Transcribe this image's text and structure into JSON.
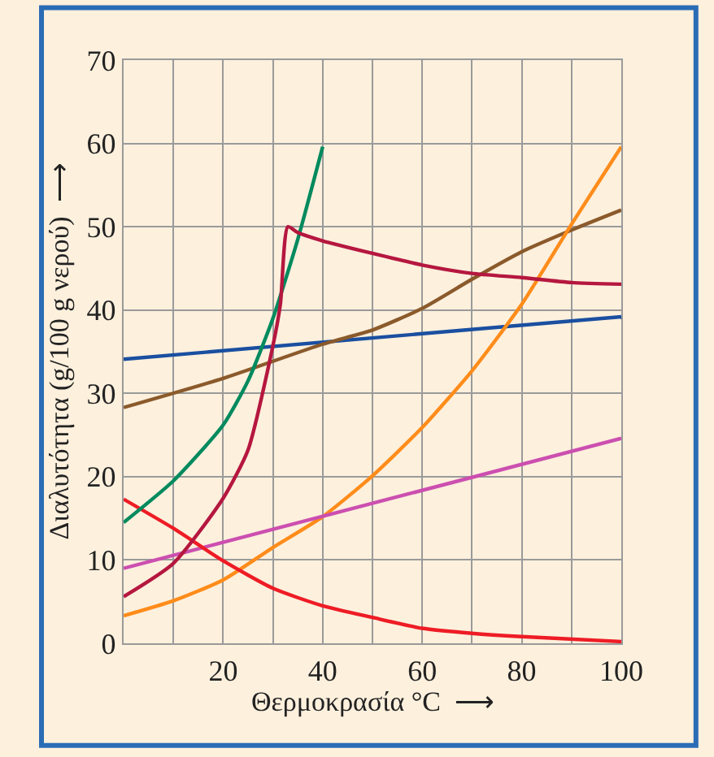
{
  "chart_data": {
    "type": "line",
    "xlabel": "Θερμοκρασία °C  ⟶",
    "ylabel": "Διαλυτότητα (g/100 g νερού)  ⟶",
    "xlim": [
      0,
      100
    ],
    "ylim": [
      0,
      70
    ],
    "xticks": [
      {
        "value": 0,
        "label": null
      },
      {
        "value": 10,
        "label": null
      },
      20,
      {
        "value": 30,
        "label": null
      },
      40,
      {
        "value": 50,
        "label": null
      },
      60,
      {
        "value": 70,
        "label": null
      },
      80,
      {
        "value": 90,
        "label": null
      },
      100
    ],
    "yticks": [
      0,
      10,
      20,
      30,
      40,
      50,
      60,
      70
    ],
    "grid": true,
    "marker": "none",
    "line_style": "solid",
    "series": [
      {
        "color": "#1a4fa0",
        "x": [
          0,
          100
        ],
        "values": [
          34.1,
          39.2
        ]
      },
      {
        "color": "#8b5a2b",
        "x": [
          0,
          20,
          40,
          50,
          60,
          70,
          80,
          90,
          100
        ],
        "values": [
          28.3,
          31.8,
          35.9,
          37.6,
          40.2,
          43.7,
          47,
          49.6,
          52
        ]
      },
      {
        "color": "#ff8c1a",
        "x": [
          0,
          10,
          20,
          30,
          40,
          50,
          60,
          70,
          80,
          90,
          100
        ],
        "values": [
          3.3,
          5.1,
          7.6,
          11.5,
          15.2,
          20.1,
          25.9,
          32.7,
          40.7,
          50.3,
          59.6
        ]
      },
      {
        "color": "#cc4fb0",
        "x": [
          0,
          100
        ],
        "values": [
          9,
          24.6
        ]
      },
      {
        "color": "#ee1c25",
        "x": [
          0,
          10,
          20,
          30,
          40,
          50,
          60,
          70,
          80,
          100
        ],
        "values": [
          17.3,
          13.8,
          9.9,
          6.6,
          4.5,
          3.1,
          1.8,
          1.2,
          0.8,
          0.2
        ]
      },
      {
        "color": "#008a5e",
        "x": [
          0,
          10,
          20,
          25,
          30,
          35,
          40
        ],
        "values": [
          14.5,
          19.5,
          26.2,
          31.5,
          39,
          48.5,
          59.6
        ]
      },
      {
        "color": "#b5173f",
        "x": [
          0,
          10,
          20,
          25,
          30,
          31.5,
          33,
          35,
          40,
          50,
          60,
          70,
          80,
          90,
          100
        ],
        "values": [
          5.6,
          9.6,
          17.4,
          23.2,
          35.7,
          40.7,
          50,
          49.3,
          48.3,
          46.8,
          45.4,
          44.4,
          43.9,
          43.3,
          43.1
        ]
      }
    ]
  }
}
